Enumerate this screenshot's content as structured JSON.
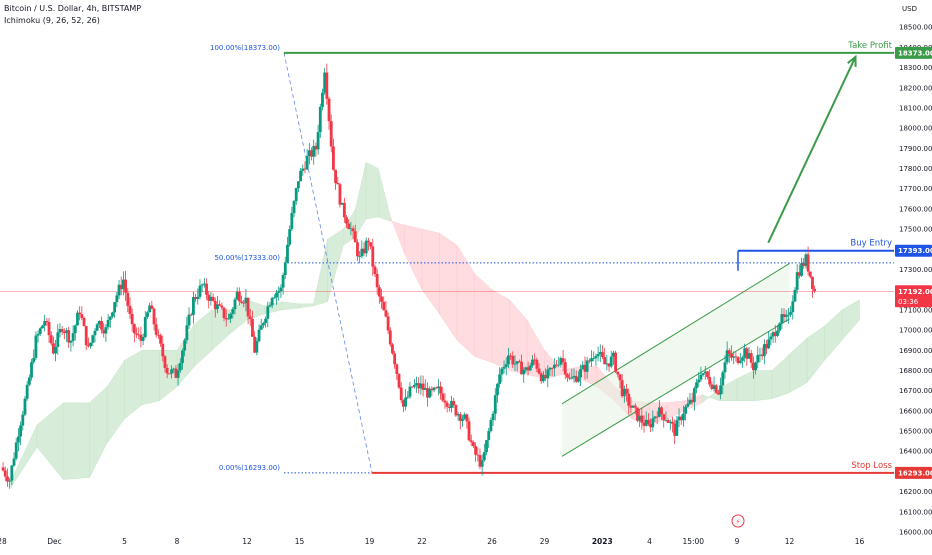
{
  "header": {
    "title": "Bitcoin / U.S. Dollar, 4h, BITSTAMP",
    "indicator": "Ichimoku (9, 26, 52, 26)"
  },
  "axis": {
    "currency": "USD",
    "bolt_glyph": "⚡"
  },
  "chart_data": {
    "type": "candlestick",
    "title": "Bitcoin / U.S. Dollar, 4h, BITSTAMP",
    "y_axis": {
      "min": 16000,
      "max": 18600,
      "step": 100,
      "tick_labels": [
        "16000.00",
        "16100.00",
        "16200.00",
        "16300.00",
        "16400.00",
        "16500.00",
        "16600.00",
        "16700.00",
        "16800.00",
        "16900.00",
        "17000.00",
        "17100.00",
        "17200.00",
        "17300.00",
        "17400.00",
        "17500.00",
        "17600.00",
        "17700.00",
        "17800.00",
        "17900.00",
        "18000.00",
        "18100.00",
        "18200.00",
        "18300.00",
        "18400.00",
        "18500.00"
      ]
    },
    "x_axis": {
      "min": 0,
      "max": 49,
      "ticks": [
        {
          "x": 0,
          "label": "28"
        },
        {
          "x": 3,
          "label": "Dec"
        },
        {
          "x": 7,
          "label": "5"
        },
        {
          "x": 10,
          "label": "8"
        },
        {
          "x": 14,
          "label": "12"
        },
        {
          "x": 17,
          "label": "15"
        },
        {
          "x": 21,
          "label": "19"
        },
        {
          "x": 24,
          "label": "22"
        },
        {
          "x": 28,
          "label": "26"
        },
        {
          "x": 31,
          "label": "29"
        },
        {
          "x": 34.3,
          "label": "2023"
        },
        {
          "x": 37,
          "label": "4"
        },
        {
          "x": 39.5,
          "label": "15:00"
        },
        {
          "x": 42,
          "label": "9"
        },
        {
          "x": 45,
          "label": "12"
        },
        {
          "x": 49,
          "label": "16"
        }
      ]
    },
    "price_levels": [
      {
        "name": "Take Profit",
        "value": 18373,
        "label": "18373.00",
        "color": "#3a9b48"
      },
      {
        "name": "Buy Entry",
        "value": 17393,
        "label": "17393.00",
        "color": "#1e53e5"
      },
      {
        "name": "Stop Loss",
        "value": 16293,
        "label": "16293.00",
        "color": "#e53935"
      }
    ],
    "current_price": {
      "value": 17192,
      "label": "17192.00",
      "countdown": "03:36",
      "color": "#f23645"
    },
    "fibonacci": [
      {
        "label": "100.00%(18373.00)",
        "value": 18373
      },
      {
        "label": "50.00%(17333.00)",
        "value": 17333
      },
      {
        "label": "0.00%(16293.00)",
        "value": 16293
      }
    ],
    "channel": {
      "lower": [
        [
          32,
          16375
        ],
        [
          45,
          17055
        ]
      ],
      "upper": [
        [
          32,
          16635
        ],
        [
          45,
          17330
        ]
      ],
      "color": "#3a9b48"
    },
    "arrow": {
      "from": [
        43.1,
        17393
      ],
      "to": [
        49,
        18373
      ],
      "color": "#3a9b48"
    },
    "cloud": [
      {
        "x": 0.5,
        "a": 16250,
        "b": 16220
      },
      {
        "x": 2,
        "a": 16530,
        "b": 16420
      },
      {
        "x": 3.5,
        "a": 16640,
        "b": 16260
      },
      {
        "x": 5,
        "a": 16640,
        "b": 16270
      },
      {
        "x": 6,
        "a": 16720,
        "b": 16440
      },
      {
        "x": 7,
        "a": 16850,
        "b": 16560
      },
      {
        "x": 8,
        "a": 16900,
        "b": 16630
      },
      {
        "x": 9,
        "a": 16900,
        "b": 16650
      },
      {
        "x": 10,
        "a": 16900,
        "b": 16720
      },
      {
        "x": 11,
        "a": 17030,
        "b": 16820
      },
      {
        "x": 12,
        "a": 17100,
        "b": 16900
      },
      {
        "x": 13,
        "a": 17100,
        "b": 16980
      },
      {
        "x": 14,
        "a": 17150,
        "b": 17050
      },
      {
        "x": 15,
        "a": 17120,
        "b": 17080
      },
      {
        "x": 16,
        "a": 17140,
        "b": 17100
      },
      {
        "x": 17,
        "a": 17130,
        "b": 17110
      },
      {
        "x": 17.8,
        "a": 17130,
        "b": 17120
      },
      {
        "x": 18.6,
        "a": 17450,
        "b": 17140
      },
      {
        "x": 19.5,
        "a": 17500,
        "b": 17420
      },
      {
        "x": 20.2,
        "a": 17600,
        "b": 17460
      },
      {
        "x": 20.8,
        "a": 17830,
        "b": 17550
      },
      {
        "x": 21.5,
        "a": 17800,
        "b": 17560
      },
      {
        "x": 22.2,
        "a": 17560,
        "b": 17540
      },
      {
        "x": 23,
        "a": 17380,
        "b": 17520
      },
      {
        "x": 24,
        "a": 17200,
        "b": 17500
      },
      {
        "x": 25,
        "a": 17080,
        "b": 17480
      },
      {
        "x": 26,
        "a": 16950,
        "b": 17420
      },
      {
        "x": 27,
        "a": 16870,
        "b": 17280
      },
      {
        "x": 28,
        "a": 16840,
        "b": 17200
      },
      {
        "x": 29,
        "a": 16800,
        "b": 17150
      },
      {
        "x": 30,
        "a": 16780,
        "b": 17050
      },
      {
        "x": 31,
        "a": 16760,
        "b": 16900
      },
      {
        "x": 32,
        "a": 16780,
        "b": 16800
      },
      {
        "x": 33,
        "a": 16760,
        "b": 16820
      },
      {
        "x": 34,
        "a": 16720,
        "b": 16820
      },
      {
        "x": 35,
        "a": 16650,
        "b": 16720
      },
      {
        "x": 36,
        "a": 16560,
        "b": 16650
      },
      {
        "x": 37,
        "a": 16530,
        "b": 16640
      },
      {
        "x": 38,
        "a": 16560,
        "b": 16640
      },
      {
        "x": 39,
        "a": 16600,
        "b": 16650
      },
      {
        "x": 40,
        "a": 16640,
        "b": 16680
      },
      {
        "x": 41,
        "a": 16710,
        "b": 16650
      },
      {
        "x": 42,
        "a": 16760,
        "b": 16650
      },
      {
        "x": 43,
        "a": 16800,
        "b": 16650
      },
      {
        "x": 44,
        "a": 16800,
        "b": 16660
      },
      {
        "x": 45,
        "a": 16880,
        "b": 16690
      },
      {
        "x": 46,
        "a": 16960,
        "b": 16740
      },
      {
        "x": 47,
        "a": 17020,
        "b": 16850
      },
      {
        "x": 48,
        "a": 17100,
        "b": 16950
      },
      {
        "x": 49,
        "a": 17150,
        "b": 17050
      }
    ],
    "price_path": [
      [
        0,
        16320
      ],
      [
        0.5,
        16260
      ],
      [
        1,
        16500
      ],
      [
        1.5,
        16700
      ],
      [
        2,
        16950
      ],
      [
        2.5,
        17050
      ],
      [
        3,
        16900
      ],
      [
        3.5,
        17020
      ],
      [
        4,
        16950
      ],
      [
        4.5,
        17100
      ],
      [
        5,
        16900
      ],
      [
        5.5,
        17050
      ],
      [
        6,
        17000
      ],
      [
        6.5,
        17150
      ],
      [
        7,
        17250
      ],
      [
        7.5,
        17000
      ],
      [
        8,
        16950
      ],
      [
        8.5,
        17120
      ],
      [
        9,
        16950
      ],
      [
        9.5,
        16800
      ],
      [
        10,
        16780
      ],
      [
        10.5,
        16950
      ],
      [
        11,
        17150
      ],
      [
        11.5,
        17220
      ],
      [
        12,
        17150
      ],
      [
        12.5,
        17100
      ],
      [
        13,
        17050
      ],
      [
        13.5,
        17180
      ],
      [
        14,
        17150
      ],
      [
        14.5,
        16900
      ],
      [
        15,
        17050
      ],
      [
        15.5,
        17180
      ],
      [
        16,
        17200
      ],
      [
        16.5,
        17500
      ],
      [
        17,
        17750
      ],
      [
        17.5,
        17850
      ],
      [
        18,
        17900
      ],
      [
        18.5,
        18300
      ],
      [
        19,
        17800
      ],
      [
        19.5,
        17600
      ],
      [
        20,
        17500
      ],
      [
        20.5,
        17350
      ],
      [
        21,
        17450
      ],
      [
        21.5,
        17200
      ],
      [
        22,
        17050
      ],
      [
        22.5,
        16850
      ],
      [
        23,
        16620
      ],
      [
        23.5,
        16720
      ],
      [
        24,
        16720
      ],
      [
        24.5,
        16680
      ],
      [
        25,
        16700
      ],
      [
        25.5,
        16650
      ],
      [
        26,
        16600
      ],
      [
        26.5,
        16560
      ],
      [
        27,
        16400
      ],
      [
        27.5,
        16330
      ],
      [
        28,
        16550
      ],
      [
        28.5,
        16780
      ],
      [
        29,
        16880
      ],
      [
        29.5,
        16820
      ],
      [
        30,
        16800
      ],
      [
        30.5,
        16850
      ],
      [
        31,
        16750
      ],
      [
        31.5,
        16800
      ],
      [
        32,
        16870
      ],
      [
        32.5,
        16750
      ],
      [
        33,
        16780
      ],
      [
        33.5,
        16830
      ],
      [
        34,
        16900
      ],
      [
        34.5,
        16830
      ],
      [
        35,
        16860
      ],
      [
        35.5,
        16700
      ],
      [
        36,
        16620
      ],
      [
        36.5,
        16560
      ],
      [
        37,
        16520
      ],
      [
        37.5,
        16600
      ],
      [
        38,
        16570
      ],
      [
        38.5,
        16500
      ],
      [
        39,
        16600
      ],
      [
        39.5,
        16650
      ],
      [
        40,
        16800
      ],
      [
        40.5,
        16750
      ],
      [
        41,
        16700
      ],
      [
        41.5,
        16880
      ],
      [
        42,
        16850
      ],
      [
        42.5,
        16900
      ],
      [
        43,
        16820
      ],
      [
        43.5,
        16900
      ],
      [
        44,
        16950
      ],
      [
        44.5,
        17050
      ],
      [
        45,
        17050
      ],
      [
        45.5,
        17280
      ],
      [
        46,
        17350
      ],
      [
        46.5,
        17192
      ]
    ]
  }
}
